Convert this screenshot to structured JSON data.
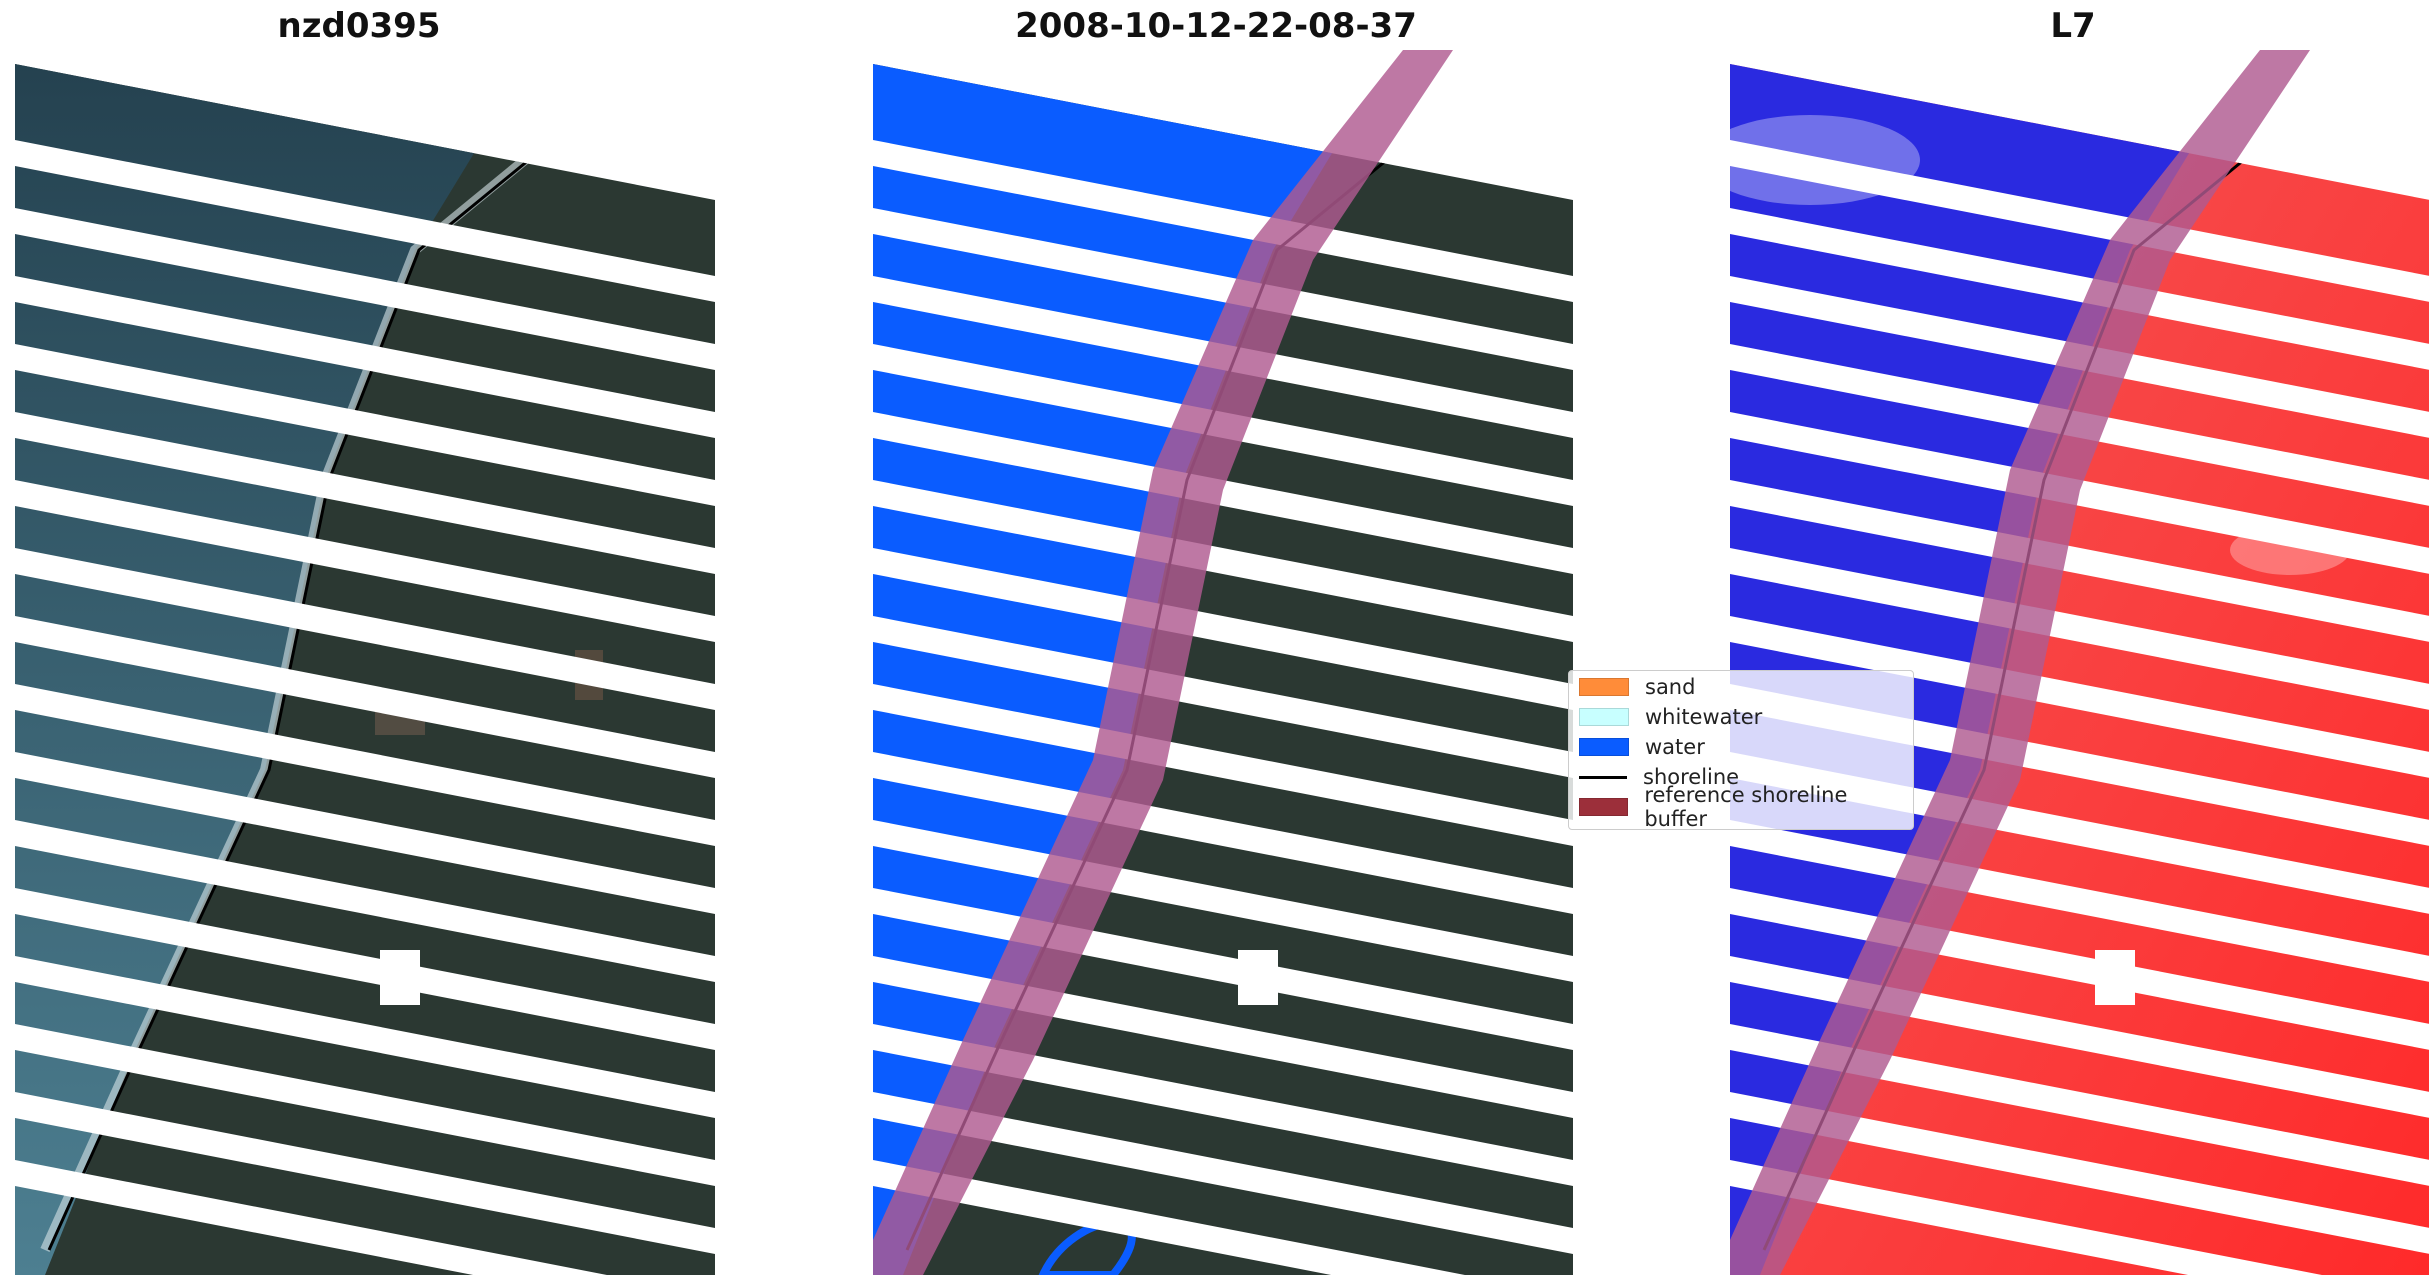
{
  "titles": {
    "left": "nzd0395",
    "middle": "2008-10-12-22-08-37",
    "right": "L7"
  },
  "legend": {
    "items": [
      {
        "label": "sand",
        "color": "#ff8c39"
      },
      {
        "label": "whitewater",
        "color": "#c8ffff"
      },
      {
        "label": "water",
        "color": "#0a5cff"
      },
      {
        "label": "shoreline",
        "color": "#000000"
      },
      {
        "label": "reference shoreline buffer",
        "color": "#9c2f3a"
      }
    ]
  },
  "colors": {
    "ocean_rgb": "#2d4d5e",
    "land_rgb": "#2c3a33",
    "water_class": "#0a5cff",
    "buffer": "#b05a90",
    "index_water": "#2a2ae0",
    "index_land": "#f04040",
    "stripe": "#ffffff"
  }
}
